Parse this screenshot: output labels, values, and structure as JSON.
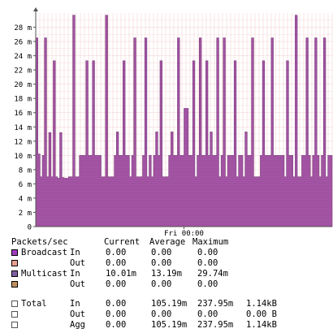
{
  "chart_data": {
    "type": "area",
    "title": "",
    "xlabel": "",
    "ylabel": "",
    "y_unit": "m",
    "ylim": [
      0,
      30
    ],
    "y_ticks": [
      0,
      2,
      4,
      6,
      8,
      10,
      12,
      14,
      16,
      18,
      20,
      22,
      24,
      26,
      28
    ],
    "y_tick_labels": [
      "0",
      "2 m",
      "4 m",
      "6 m",
      "8 m",
      "10 m",
      "12 m",
      "14 m",
      "16 m",
      "18 m",
      "20 m",
      "22 m",
      "24 m",
      "26 m",
      "28 m"
    ],
    "x_tick_labels": [
      {
        "label": "Fri 00:00",
        "position": 0.5
      }
    ],
    "grid": true,
    "series": [
      {
        "name": "Multicast",
        "color": "#a050a0",
        "values": [
          26.5,
          10.2,
          7,
          10,
          26.5,
          7,
          13.2,
          7,
          23.3,
          7,
          6.8,
          13.2,
          6.9,
          6.8,
          6.8,
          7,
          7,
          29.7,
          7,
          7,
          10,
          10,
          10,
          23.3,
          10,
          10,
          23.3,
          10,
          10,
          10,
          7,
          7,
          29.7,
          7,
          7,
          7,
          10,
          13.3,
          10,
          10,
          23.3,
          10,
          10,
          7,
          10,
          26.5,
          7,
          7,
          7,
          10,
          26.5,
          7,
          10,
          7,
          10,
          13.3,
          10,
          23.3,
          7,
          7,
          7,
          10,
          13.3,
          10,
          10,
          26.5,
          10,
          10,
          16.6,
          16.6,
          10,
          10,
          23.3,
          7,
          10,
          26.5,
          10,
          10,
          23.3,
          10,
          13.3,
          10,
          10,
          26.5,
          7,
          10,
          26.5,
          7,
          10,
          10,
          10,
          23.3,
          7,
          10,
          10,
          7,
          13.3,
          10,
          10,
          26.5,
          7,
          7,
          7,
          10,
          23.3,
          10,
          10,
          10,
          26.5,
          10,
          10,
          10,
          10,
          10,
          7,
          23.3,
          10,
          10,
          7,
          29.7,
          7,
          7,
          10,
          10,
          26.5,
          10,
          7,
          10,
          26.5,
          10,
          7,
          10,
          26.5,
          7,
          10,
          10
        ]
      },
      {
        "name": "Broadcast",
        "color": "#a03cc0",
        "values": []
      }
    ]
  },
  "legend": {
    "header": {
      "title": "Packets/sec",
      "current": "Current",
      "average": "Average",
      "maximum": "Maximum"
    },
    "rows": [
      {
        "name": "Broadcast",
        "dir": "In",
        "current": "0.00",
        "average": "0.00",
        "maximum": "0.00",
        "color": "#a03cc0"
      },
      {
        "name": "",
        "dir": "Out",
        "current": "0.00",
        "average": "0.00",
        "maximum": "0.00",
        "color": "#e8a090"
      },
      {
        "name": "Multicast",
        "dir": "In",
        "current": "10.01m",
        "average": "13.19m",
        "maximum": "29.74m",
        "color": "#8060a0"
      },
      {
        "name": "",
        "dir": "Out",
        "current": "0.00",
        "average": "0.00",
        "maximum": "0.00",
        "color": "#c09060"
      }
    ],
    "totals": [
      {
        "name": "Total",
        "dir": "In",
        "current": "0.00",
        "average": "105.19m",
        "maximum": "237.95m",
        "total": "1.14kB"
      },
      {
        "name": "",
        "dir": "Out",
        "current": "0.00",
        "average": "0.00",
        "maximum": "0.00",
        "total": "0.00 B"
      },
      {
        "name": "",
        "dir": "Agg",
        "current": "0.00",
        "average": "105.19m",
        "maximum": "237.95m",
        "total": "1.14kB"
      }
    ]
  }
}
